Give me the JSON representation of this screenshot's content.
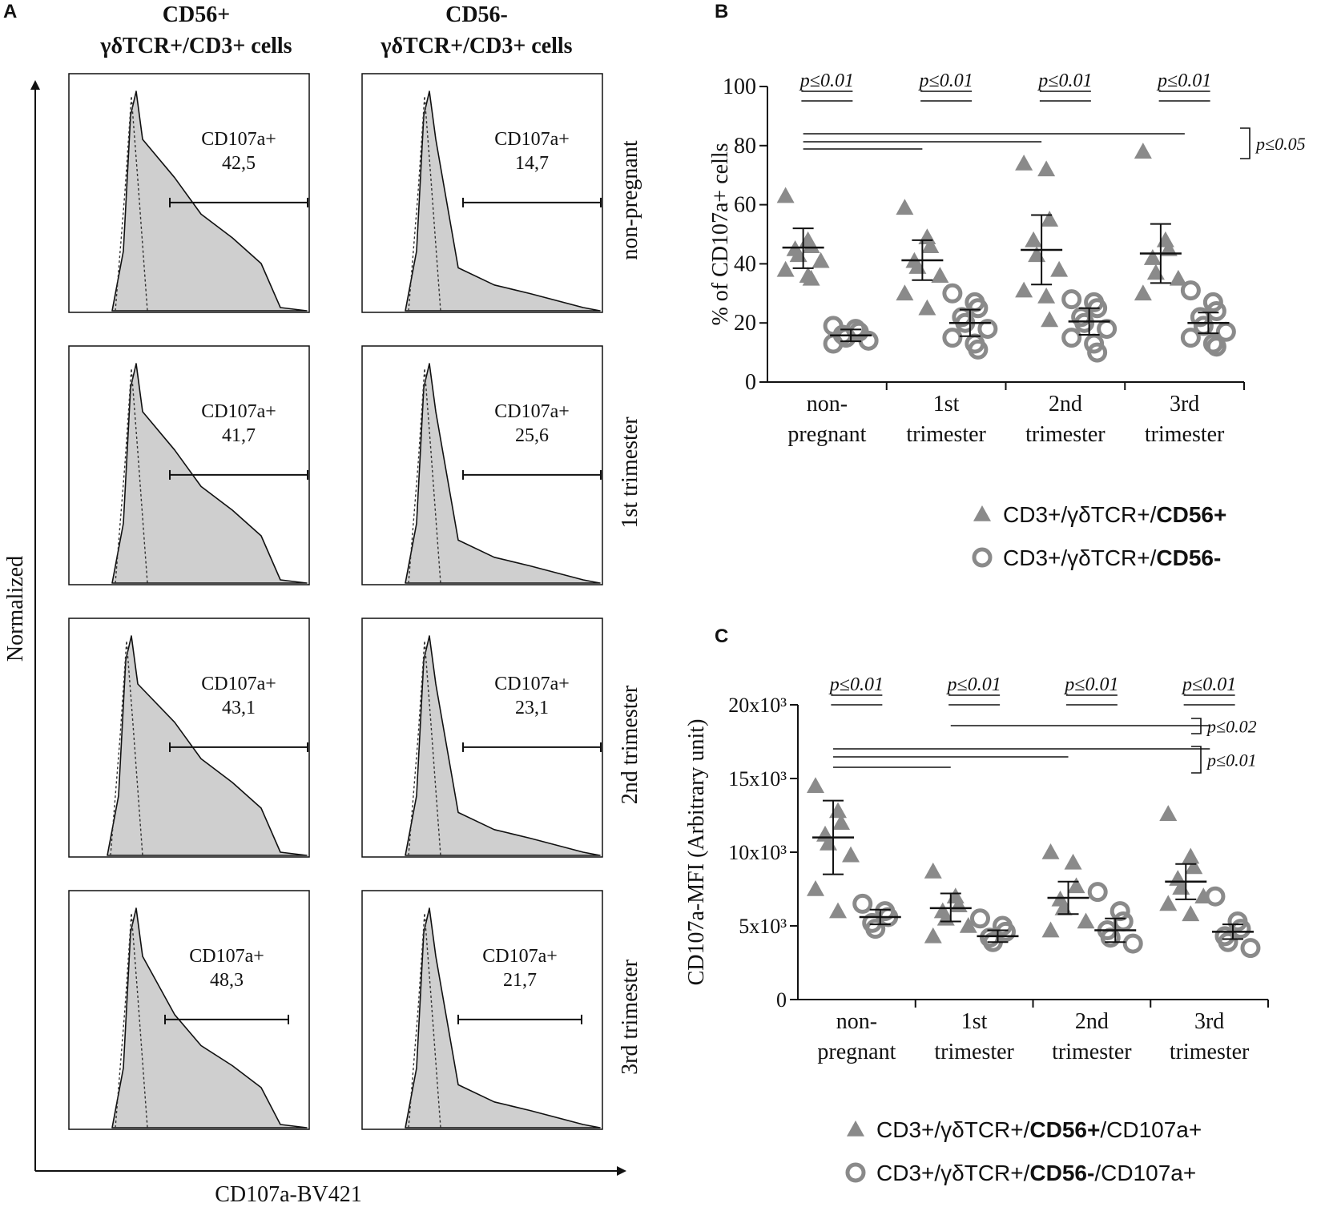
{
  "panel_a": {
    "letter": "A",
    "col_headers": [
      [
        "CD56+",
        "γδTCR+/CD3+ cells"
      ],
      [
        "CD56-",
        "γδTCR+/CD3+ cells"
      ]
    ],
    "row_labels": [
      "non-pregnant",
      "1st trimester",
      "2nd trimester",
      "3rd trimester"
    ],
    "gate_title": "CD107a+",
    "gate_values": [
      [
        "42,5",
        "14,7"
      ],
      [
        "41,7",
        "25,6"
      ],
      [
        "43,1",
        "23,1"
      ],
      [
        "48,3",
        "21,7"
      ]
    ],
    "y_axis_label": "Normalized",
    "x_axis_label": "CD107a-BV421"
  },
  "chart_data": [
    {
      "id": "B",
      "type": "scatter",
      "panel_letter": "B",
      "ylabel": "% of CD107a+ cells",
      "ylim": [
        0,
        100
      ],
      "yticks": [
        "0",
        "20",
        "40",
        "60",
        "80",
        "100"
      ],
      "ytick_values": [
        0,
        20,
        40,
        60,
        80,
        100
      ],
      "categories": [
        [
          "non-",
          "pregnant"
        ],
        [
          "1st",
          "trimester"
        ],
        [
          "2nd",
          "trimester"
        ],
        [
          "3rd",
          "trimester"
        ]
      ],
      "series": [
        {
          "name": "CD3+/γδTCR+/CD56+",
          "legend_parts": [
            "CD3+/γδTCR+/",
            "CD56+"
          ],
          "marker": "triangle",
          "points": [
            [
              63,
              48,
              46,
              45,
              43,
              41,
              38,
              36,
              35
            ],
            [
              59,
              49,
              46,
              41,
              39,
              36,
              30,
              25
            ],
            [
              74,
              72,
              55,
              48,
              43,
              38,
              31,
              29,
              21
            ],
            [
              78,
              48,
              45,
              42,
              37,
              35,
              30
            ]
          ],
          "means": [
            45.5,
            41.2,
            44.7,
            43.5
          ],
          "err_low": [
            38.5,
            34.5,
            33.0,
            33.5
          ],
          "err_high": [
            52.0,
            48.0,
            56.5,
            53.5
          ]
        },
        {
          "name": "CD3+/γδTCR+/CD56-",
          "legend_parts": [
            "CD3+/γδTCR+/",
            "CD56-"
          ],
          "marker": "circle",
          "points": [
            [
              19,
              18,
              17,
              16,
              15,
              14,
              13
            ],
            [
              30,
              27,
              25,
              22,
              20,
              18,
              15,
              13,
              11
            ],
            [
              28,
              27,
              25,
              22,
              20,
              18,
              15,
              13,
              10
            ],
            [
              31,
              27,
              24,
              22,
              19,
              17,
              15,
              13,
              12
            ]
          ],
          "means": [
            15.8,
            20.0,
            20.5,
            20.0
          ],
          "err_low": [
            13.8,
            15.5,
            16.0,
            16.5
          ],
          "err_high": [
            17.8,
            24.5,
            25.0,
            23.5
          ]
        }
      ],
      "pair_pvalues": [
        "p≤0.01",
        "p≤0.01",
        "p≤0.01",
        "p≤0.01"
      ],
      "comparison_lines": [
        {
          "from": 0,
          "to": 1
        },
        {
          "from": 0,
          "to": 2
        },
        {
          "from": 0,
          "to": 3
        }
      ],
      "bracket_labels": [
        "p≤0.05"
      ]
    },
    {
      "id": "C",
      "type": "scatter",
      "panel_letter": "C",
      "ylabel": "CD107a-MFI (Arbitrary unit)",
      "ylim": [
        0,
        20000
      ],
      "yticks": [
        "0",
        "5x10³",
        "10x10³",
        "15x10³",
        "20x10³"
      ],
      "ytick_values": [
        0,
        5000,
        10000,
        15000,
        20000
      ],
      "categories": [
        [
          "non-",
          "pregnant"
        ],
        [
          "1st",
          "trimester"
        ],
        [
          "2nd",
          "trimester"
        ],
        [
          "3rd",
          "trimester"
        ]
      ],
      "series": [
        {
          "name": "CD3+/γδTCR+/CD56+/CD107a+",
          "legend_parts": [
            "CD3+/γδTCR+/",
            "CD56+",
            "/CD107a+"
          ],
          "marker": "triangle",
          "points": [
            [
              14500,
              12800,
              12000,
              11200,
              10600,
              9800,
              7500,
              6000
            ],
            [
              8700,
              7000,
              6400,
              6000,
              5500,
              5000,
              4300
            ],
            [
              10000,
              9300,
              7700,
              6800,
              6200,
              5300,
              4700
            ],
            [
              12600,
              9700,
              9000,
              8200,
              7600,
              7000,
              6500,
              5800
            ]
          ],
          "means": [
            11000,
            6200,
            6900,
            8000
          ],
          "err_low": [
            8500,
            5300,
            5800,
            6800
          ],
          "err_high": [
            13500,
            7200,
            8000,
            9200
          ]
        },
        {
          "name": "CD3+/γδTCR+/CD56-/CD107a+",
          "legend_parts": [
            "CD3+/γδTCR+/",
            "CD56-",
            "/CD107a+"
          ],
          "marker": "circle",
          "points": [
            [
              6500,
              6000,
              5600,
              5200,
              4800
            ],
            [
              5500,
              5000,
              4600,
              4200,
              3900
            ],
            [
              7300,
              6000,
              5300,
              4700,
              4200,
              3800
            ],
            [
              7000,
              5300,
              4800,
              4300,
              3900,
              3500
            ]
          ],
          "means": [
            5600,
            4300,
            4700,
            4600
          ],
          "err_low": [
            5100,
            3900,
            3900,
            4100
          ],
          "err_high": [
            6100,
            4700,
            5500,
            5100
          ]
        }
      ],
      "pair_pvalues": [
        "p≤0.01",
        "p≤0.01",
        "p≤0.01",
        "p≤0.01"
      ],
      "comparison_lines": [
        {
          "from": 1,
          "to": 3
        },
        {
          "from": 0,
          "to": 3
        },
        {
          "from": 0,
          "to": 2
        },
        {
          "from": 0,
          "to": 1
        }
      ],
      "bracket_labels": [
        "p≤0.02",
        "p≤0.01"
      ]
    }
  ]
}
